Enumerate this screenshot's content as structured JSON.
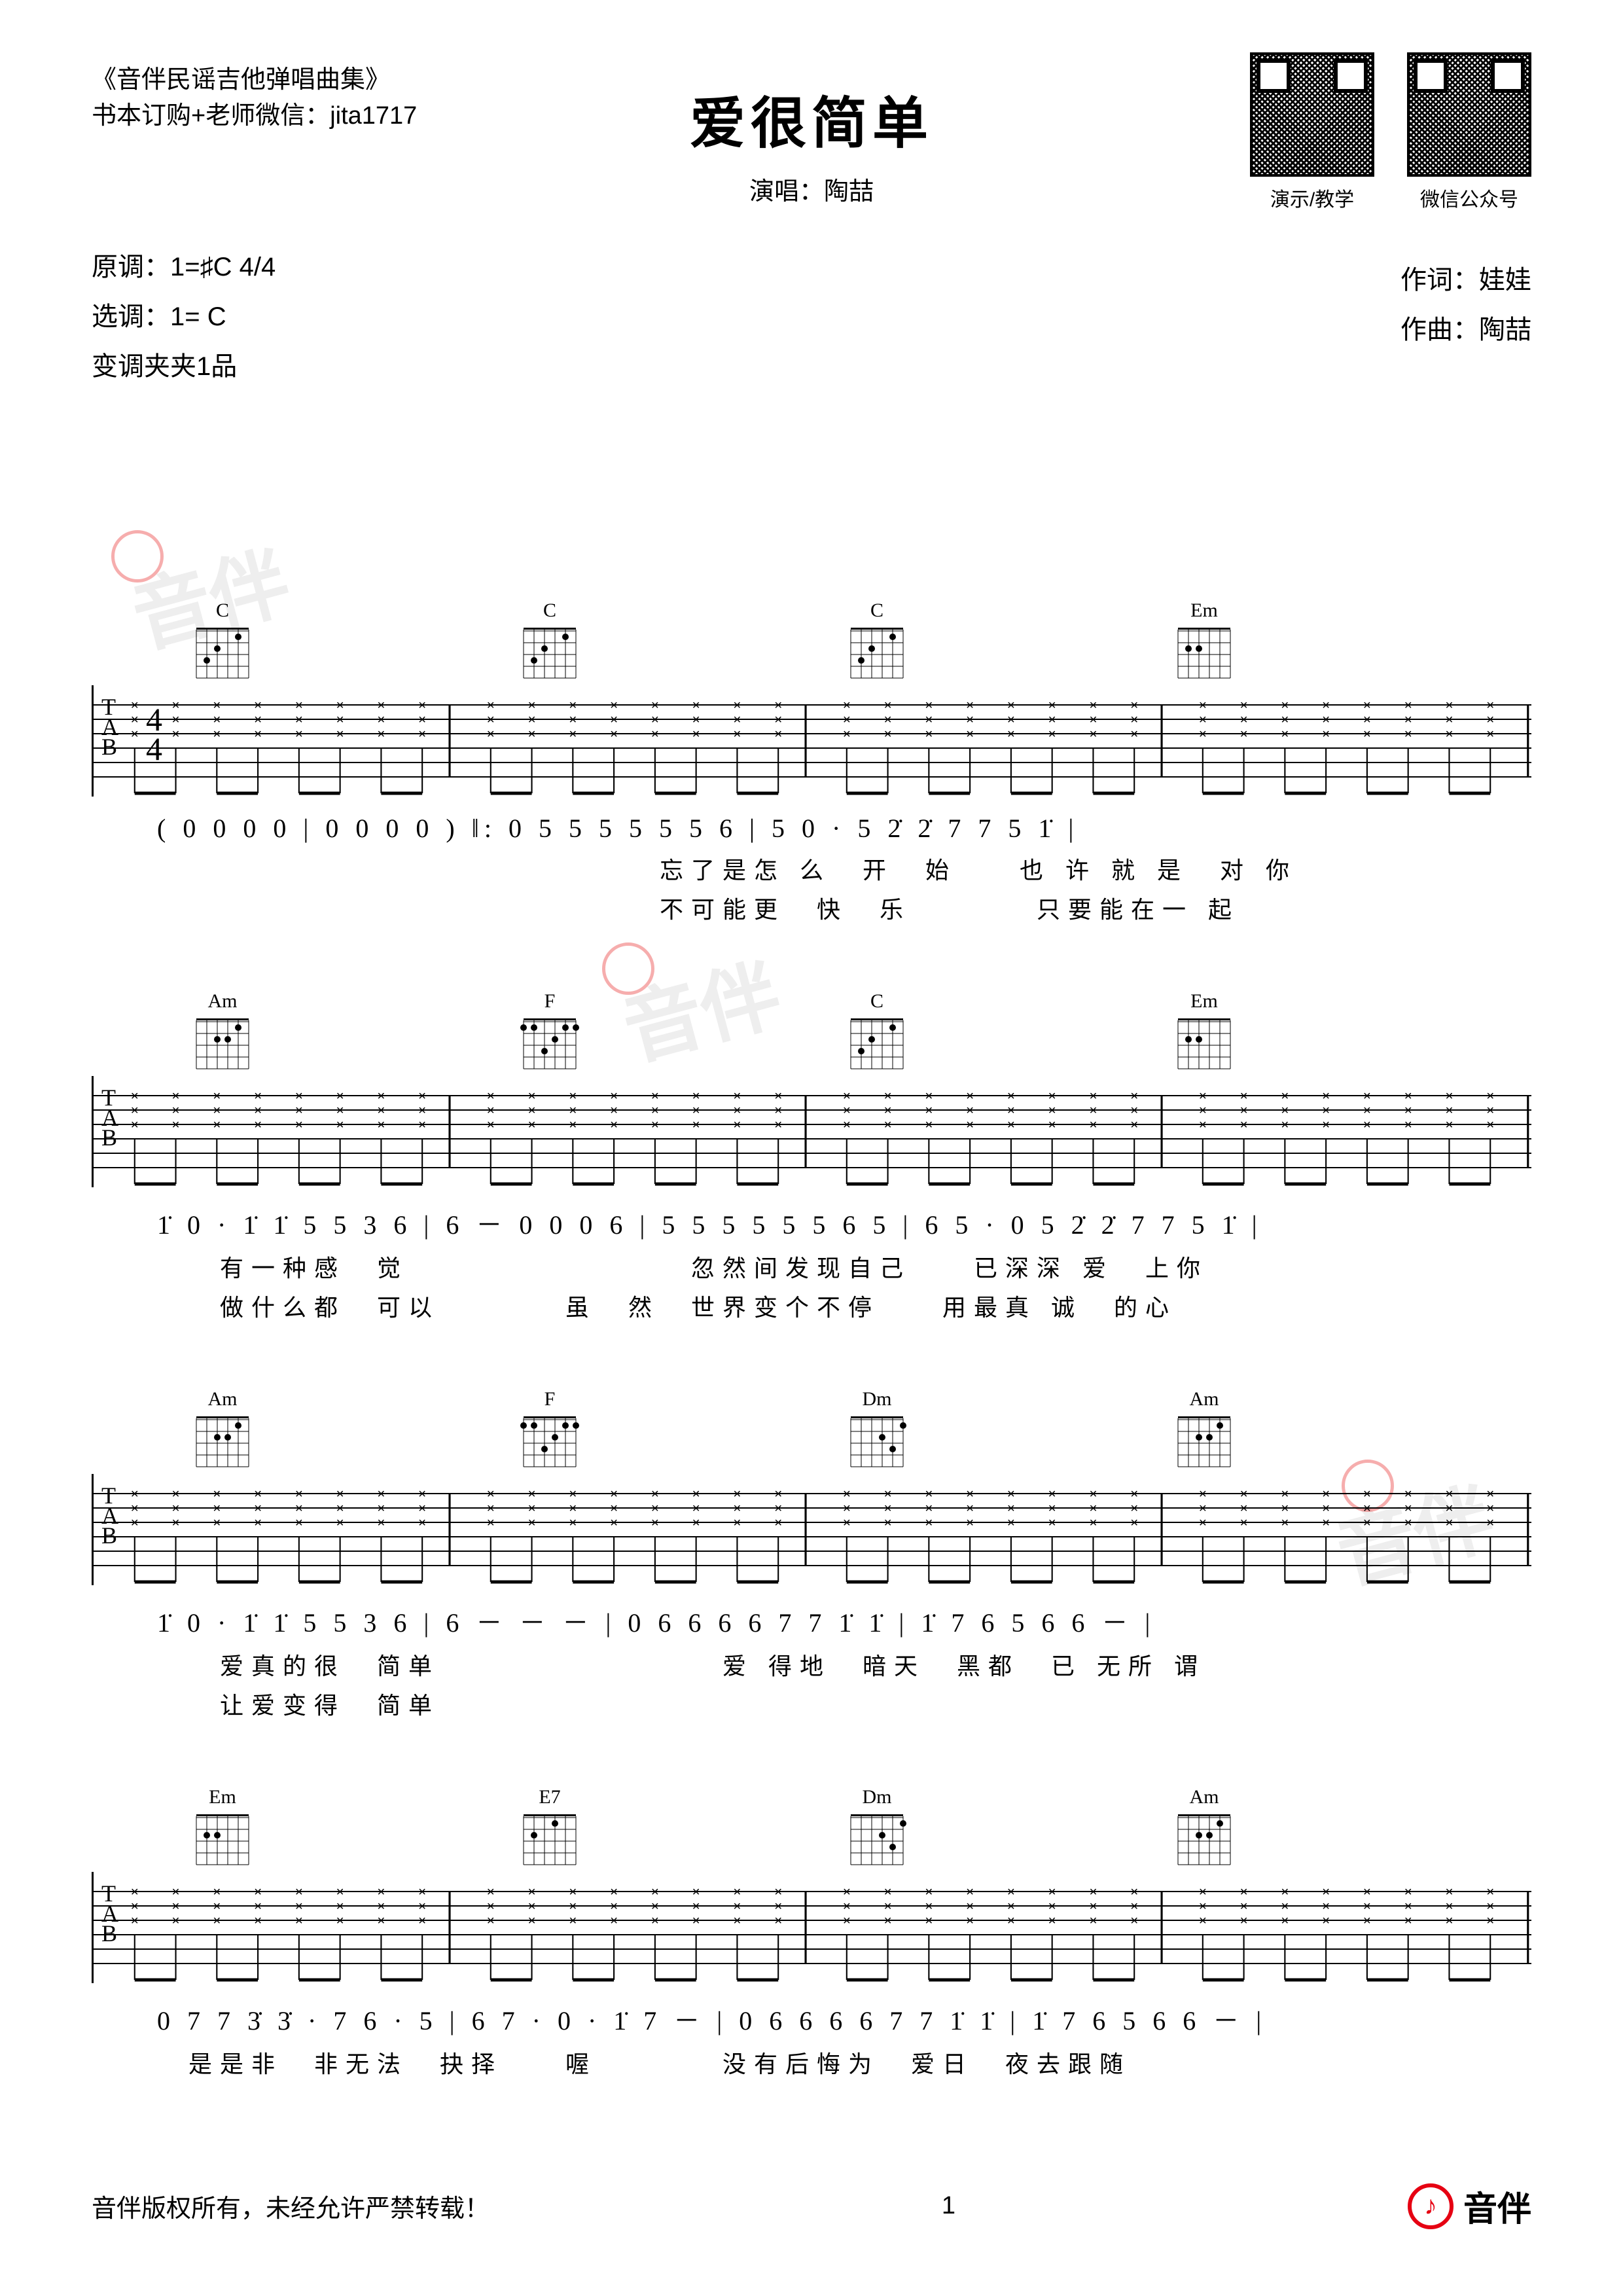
{
  "header": {
    "book": "《音伴民谣吉他弹唱曲集》",
    "contact": "书本订购+老师微信：jita1717"
  },
  "title": "爱很简单",
  "performer_label": "演唱：陶喆",
  "qr": [
    {
      "caption": "演示/教学"
    },
    {
      "caption": "微信公众号"
    }
  ],
  "key_info": {
    "line1": "原调：1=♯C  4/4",
    "line2": "选调：1= C",
    "line3": "变调夹夹1品"
  },
  "credits": {
    "lyricist": "作词：娃娃",
    "composer": "作曲：陶喆"
  },
  "systems": [
    {
      "chords": [
        "C",
        "C",
        "C",
        "Em"
      ],
      "jianpu": "( 0  0  0  0  | 0  0  0  0 ) ‖: 0  5 5 5 5 5 5 6 | 5  0 · 5 2̇ 2̇ 7 7 5 1̇ |",
      "lyrics1": "　　　　　　　　　　　　　　　　忘了是怎 么　开　始　　也 许 就 是　对 你",
      "lyrics2": "　　　　　　　　　　　　　　　　不可能更　快　乐　　　　只要能在一 起"
    },
    {
      "chords": [
        "Am",
        "F",
        "C",
        "Em"
      ],
      "jianpu": "1̇  0 · 1̇ 1̇ 5 5 3 6 | 6  －  0 0 0 6 | 5  5 5 5 5 5 6 5 | 6 5 · 0 5 2̇ 2̇ 7 7 5 1̇ |",
      "lyrics1": "　　有一种感　觉　　　　　　　　　忽然间发现自己　　已深深 爱　上你",
      "lyrics2": "　　做什么都　可以　　　　虽　然　世界变个不停　　用最真 诚　的心"
    },
    {
      "chords": [
        "Am",
        "F",
        "Dm",
        "Am"
      ],
      "jianpu": "1̇  0 · 1̇ 1̇ 5 5 3 6 | 6  －  －  － | 0  6 6 6 6 7 7 1̇ 1̇ | 1̇ 7 6 5 6 6  － |",
      "lyrics1": "　　爱真的很　简单　　　　　　　　　爱 得地　暗天　黑都　已 无所 谓",
      "lyrics2": "　　让爱变得　简单"
    },
    {
      "chords": [
        "Em",
        "E7",
        "Dm",
        "Am"
      ],
      "jianpu": "0  7 7 3̇ 3̇ · 7 6 · 5 | 6 7 · 0 · 1̇ 7  － | 0  6 6 6 6 7 7 1̇ 1̇ | 1̇ 7 6 5 6 6  － |",
      "lyrics1": "　是是非　非无法　抉择　　喔　　　　没有后悔为　爱日　夜去跟随",
      "lyrics2": ""
    }
  ],
  "footer": {
    "copyright": "音伴版权所有，未经允许严禁转载！",
    "page": "1",
    "brand": "音伴"
  },
  "colors": {
    "accent": "#e60012",
    "text": "#000000",
    "watermark": "rgba(200,200,200,0.3)"
  }
}
